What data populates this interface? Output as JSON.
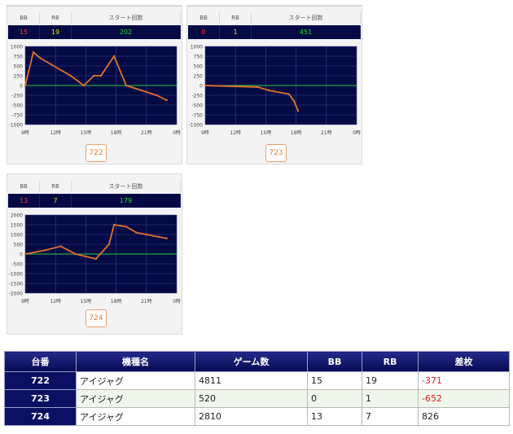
{
  "header_labels": {
    "bb": "BB",
    "rb": "RB",
    "start": "スタート回数"
  },
  "y_ticks_small": [
    "1000",
    "750",
    "500",
    "250",
    "0",
    "-250",
    "-500",
    "-750",
    "-1000"
  ],
  "y_ticks_large": [
    "2000",
    "1500",
    "1000",
    "500",
    "0",
    "-500",
    "-1000",
    "-1500",
    "-2000"
  ],
  "x_ticks": [
    "9時",
    "12時",
    "15時",
    "18時",
    "21時",
    "0時"
  ],
  "cards": [
    {
      "machine": "722",
      "bb": "15",
      "rb": "19",
      "start": "202"
    },
    {
      "machine": "723",
      "bb": "0",
      "rb": "1",
      "start": "451"
    },
    {
      "machine": "724",
      "bb": "13",
      "rb": "7",
      "start": "179"
    }
  ],
  "table": {
    "headers": [
      "台番",
      "機種名",
      "ゲーム数",
      "BB",
      "RB",
      "差枚"
    ],
    "rows": [
      {
        "no": "722",
        "name": "アイジャグ",
        "games": "4811",
        "bb": "15",
        "rb": "19",
        "diff": "-371"
      },
      {
        "no": "723",
        "name": "アイジャグ",
        "games": "520",
        "bb": "0",
        "rb": "1",
        "diff": "-652"
      },
      {
        "no": "724",
        "name": "アイジャグ",
        "games": "2810",
        "bb": "13",
        "rb": "7",
        "diff": "826"
      }
    ]
  },
  "colors": {
    "line": "#e0722c",
    "zero": "#2ecc40",
    "plot_bg": "#050a45",
    "negative": "#e02020"
  },
  "chart_data": [
    {
      "type": "line",
      "title": "722",
      "ylim": [
        -1000,
        1000
      ],
      "xlim": [
        9,
        24
      ],
      "series": [
        {
          "x": [
            9,
            9.8,
            10.5,
            13.5,
            14.8,
            15.8,
            16.5,
            17.8,
            19,
            20.5,
            22,
            23
          ],
          "y": [
            0,
            850,
            700,
            250,
            0,
            250,
            250,
            750,
            0,
            -125,
            -250,
            -375
          ]
        }
      ]
    },
    {
      "type": "line",
      "title": "723",
      "ylim": [
        -1000,
        1000
      ],
      "xlim": [
        9,
        24
      ],
      "series": [
        {
          "x": [
            9,
            14.2,
            15.3,
            17.3,
            17.8,
            18.2
          ],
          "y": [
            0,
            -40,
            -125,
            -220,
            -400,
            -650
          ]
        }
      ]
    },
    {
      "type": "line",
      "title": "724",
      "ylim": [
        -2000,
        2000
      ],
      "xlim": [
        9,
        24
      ],
      "series": [
        {
          "x": [
            9,
            11,
            12.5,
            14,
            16,
            17.3,
            17.8,
            19,
            20,
            21,
            23
          ],
          "y": [
            0,
            200,
            400,
            0,
            -250,
            500,
            1500,
            1400,
            1100,
            1000,
            800
          ]
        }
      ]
    }
  ]
}
